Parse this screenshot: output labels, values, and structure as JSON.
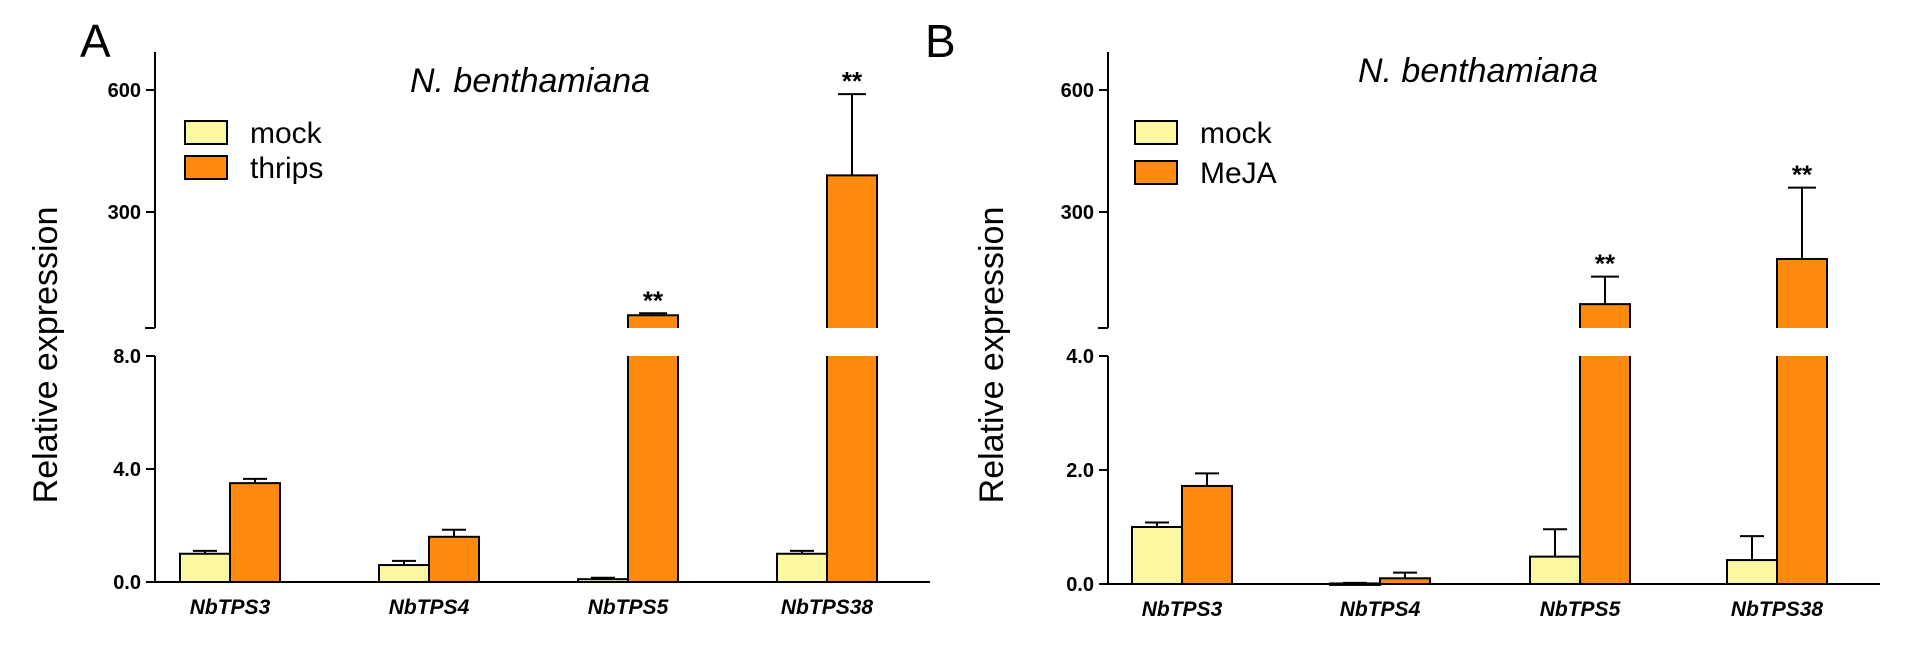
{
  "colors": {
    "mock": "#FCF8A2",
    "treatment": "#FF8A0E",
    "stroke": "#000000"
  },
  "chart_data": [
    {
      "panel": "A",
      "type": "bar",
      "title": "N. benthamiana",
      "ylabel": "Relative expression",
      "categories": [
        "NbTPS3",
        "NbTPS4",
        "NbTPS5",
        "NbTPS38"
      ],
      "series": [
        {
          "name": "mock",
          "values": [
            1.0,
            0.6,
            0.1,
            1.0
          ],
          "errors": [
            0.1,
            0.15,
            0.05,
            0.1
          ]
        },
        {
          "name": "thrips",
          "values": [
            3.5,
            1.6,
            40,
            390
          ],
          "errors": [
            0.15,
            0.25,
            5,
            200
          ]
        }
      ],
      "significance": [
        {
          "category": "NbTPS5",
          "label": "**"
        },
        {
          "category": "NbTPS38",
          "label": "**"
        }
      ],
      "axis_break": true,
      "lower_ticks": [
        "0.0",
        "4.0",
        "8.0"
      ],
      "lower_ylim": [
        0,
        8
      ],
      "upper_ticks": [
        "300",
        "600"
      ],
      "upper_ylim": [
        0,
        600
      ],
      "legend_position": "top-left"
    },
    {
      "panel": "B",
      "type": "bar",
      "title": "N. benthamiana",
      "ylabel": "Relative expression",
      "categories": [
        "NbTPS3",
        "NbTPS4",
        "NbTPS5",
        "NbTPS38"
      ],
      "series": [
        {
          "name": "mock",
          "values": [
            1.0,
            0.01,
            0.48,
            0.42
          ],
          "errors": [
            0.08,
            0.01,
            0.48,
            0.42
          ]
        },
        {
          "name": "MeJA",
          "values": [
            1.72,
            0.1,
            65,
            180
          ],
          "errors": [
            0.22,
            0.1,
            70,
            180
          ]
        }
      ],
      "significance": [
        {
          "category": "NbTPS5",
          "label": "**"
        },
        {
          "category": "NbTPS38",
          "label": "**"
        }
      ],
      "axis_break": true,
      "lower_ticks": [
        "0.0",
        "2.0",
        "4.0"
      ],
      "lower_ylim": [
        0,
        4
      ],
      "upper_ticks": [
        "300",
        "600"
      ],
      "upper_ylim": [
        0,
        600
      ],
      "legend_position": "top-left"
    }
  ]
}
